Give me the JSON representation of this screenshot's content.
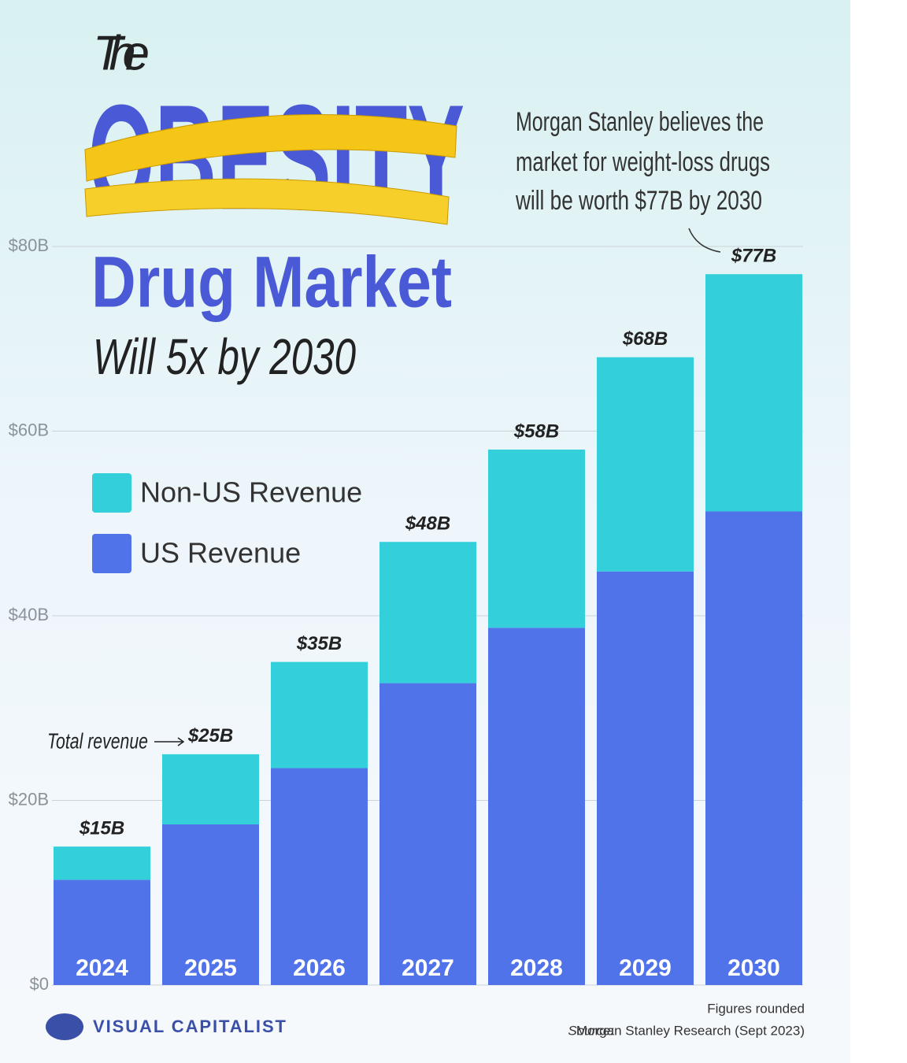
{
  "chart_data": {
    "type": "stacked-bar",
    "title_lines": [
      "The",
      "OBESITY",
      "Drug Market",
      "Will 5x by 2030"
    ],
    "annotation": [
      "Morgan Stanley believes the",
      "market for weight-loss drugs",
      "will be worth $77B by 2030"
    ],
    "total_annotation": "Total revenue",
    "categories": [
      "2024",
      "2025",
      "2026",
      "2027",
      "2028",
      "2029",
      "2030"
    ],
    "series": [
      {
        "name": "US Revenue",
        "color": "#5073ea",
        "values": [
          11.4,
          17.4,
          23.5,
          32.7,
          38.7,
          44.8,
          51.3
        ]
      },
      {
        "name": "Non-US Revenue",
        "color": "#33cfdb",
        "values": [
          3.6,
          7.6,
          11.5,
          15.3,
          19.3,
          23.2,
          25.7
        ]
      }
    ],
    "totals": {
      "values": [
        15,
        25,
        35,
        48,
        58,
        68,
        77
      ],
      "value_labels": [
        "$15B",
        "$25B",
        "$35B",
        "$48B",
        "$58B",
        "$68B",
        "$77B"
      ]
    },
    "ylim": [
      0,
      80
    ],
    "yticks": [
      {
        "value": 0,
        "label": "$0"
      },
      {
        "value": 20,
        "label": "$20B"
      },
      {
        "value": 40,
        "label": "$40B"
      },
      {
        "value": 60,
        "label": "$60B"
      },
      {
        "value": 80,
        "label": "$80B"
      }
    ],
    "grid": true,
    "footer": {
      "note": "Figures rounded",
      "source_label": "Source:",
      "source": "Morgan Stanley Research (Sept 2023)",
      "brand": "VISUAL CAPITALIST"
    }
  }
}
